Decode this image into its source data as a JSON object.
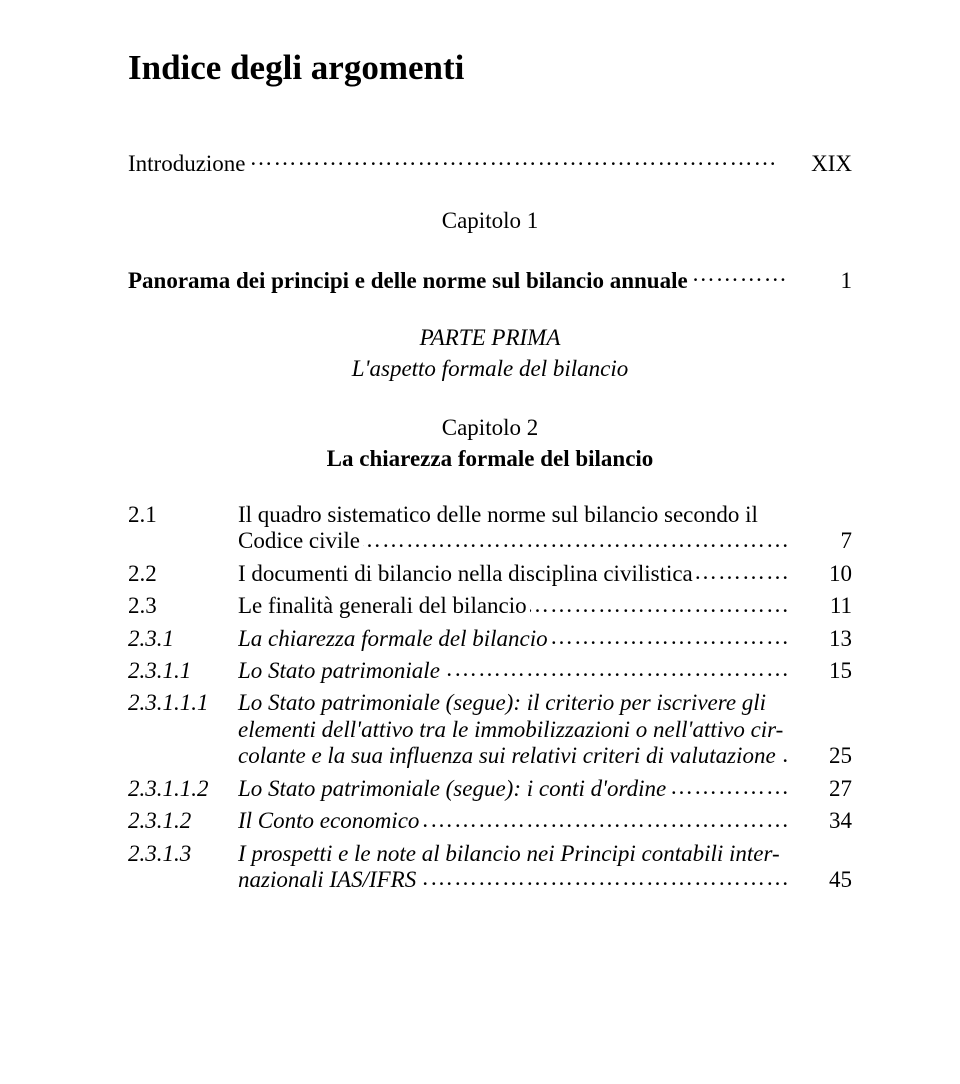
{
  "title": "Indice degli argomenti",
  "intro_label": "Introduzione",
  "intro_page": "XIX",
  "cap1_label": "Capitolo 1",
  "cap1_title": "Panorama dei principi e delle norme sul bilancio annuale",
  "cap1_page": "1",
  "parte_label": "PARTE PRIMA",
  "parte_title": "L'aspetto formale del bilancio",
  "cap2_label": "Capitolo 2",
  "cap2_title": "La chiarezza formale del bilancio",
  "toc": {
    "r0_num": "2.1",
    "r0_t1": "Il quadro sistematico delle norme sul bilancio secondo il",
    "r0_t2": "Codice civile",
    "r0_pg": "7",
    "r1_num": "2.2",
    "r1_t": "I documenti di bilancio nella disciplina civilistica",
    "r1_pg": "10",
    "r2_num": "2.3",
    "r2_t": "Le finalità generali del bilancio",
    "r2_pg": "11",
    "r3_num": "2.3.1",
    "r3_t": "La chiarezza formale del bilancio",
    "r3_pg": "13",
    "r4_num": "2.3.1.1",
    "r4_t": "Lo Stato patrimoniale",
    "r4_pg": "15",
    "r5_num": "2.3.1.1.1",
    "r5_t1": "Lo Stato patrimoniale (segue): il criterio per iscrivere gli",
    "r5_t2": "elementi dell'attivo tra le immobilizzazioni o nell'attivo cir-",
    "r5_t3": "colante e la sua influenza sui relativi criteri di valutazione",
    "r5_pg": "25",
    "r6_num": "2.3.1.1.2",
    "r6_t": "Lo Stato patrimoniale (segue): i conti d'ordine",
    "r6_pg": "27",
    "r7_num": "2.3.1.2",
    "r7_t": "Il Conto economico",
    "r7_pg": "34",
    "r8_num": "2.3.1.3",
    "r8_t1": "I prospetti e le note al bilancio nei Principi contabili inter-",
    "r8_t2": "nazionali IAS/IFRS",
    "r8_pg": "45"
  }
}
